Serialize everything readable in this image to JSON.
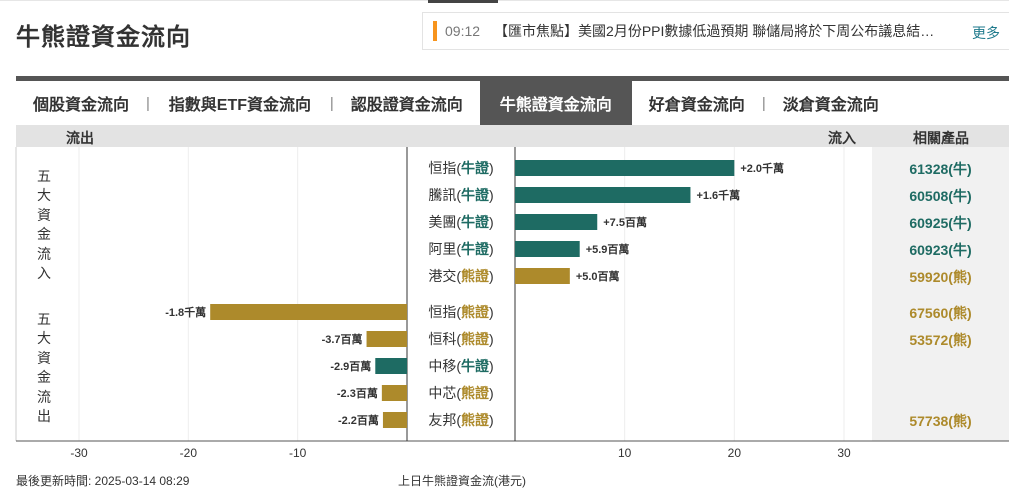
{
  "page_title": "牛熊證資金流向",
  "ticker": {
    "time": "09:12",
    "text": "【匯市焦點】美國2月份PPI數據低過預期 聯儲局將於下周公布議息結…",
    "more": "更多"
  },
  "tabs": [
    {
      "label": "個股資金流向",
      "active": false
    },
    {
      "label": "指數與ETF資金流向",
      "active": false
    },
    {
      "label": "認股證資金流向",
      "active": false
    },
    {
      "label": "牛熊證資金流向",
      "active": true
    },
    {
      "label": "好倉資金流向",
      "active": false
    },
    {
      "label": "淡倉資金流向",
      "active": false
    }
  ],
  "tab_separator": "|",
  "header": {
    "outflow": "流出",
    "inflow": "流入",
    "products": "相關產品"
  },
  "side_labels": {
    "inflow": "五大資金流入",
    "outflow": "五大資金流出"
  },
  "colors": {
    "bull": "#1e6b63",
    "bear": "#ad8a2b",
    "bull_text": "#1e6b63",
    "bear_text": "#ad8a2b"
  },
  "chart_data": {
    "type": "bar",
    "orientation": "horizontal",
    "x_ticks": [
      -30,
      -20,
      -10,
      10,
      20,
      30
    ],
    "x_tick_labels": [
      "-30",
      "-20",
      "-10",
      "10",
      "20",
      "30"
    ],
    "xlim": [
      -30,
      30
    ],
    "xlabel": "上日牛熊證資金流(港元)",
    "inflow": [
      {
        "name": "恒指",
        "type": "牛證",
        "kind": "bull",
        "value": 20,
        "label": "+2.0千萬",
        "product": "61328(牛)"
      },
      {
        "name": "騰訊",
        "type": "牛證",
        "kind": "bull",
        "value": 16,
        "label": "+1.6千萬",
        "product": "60508(牛)"
      },
      {
        "name": "美團",
        "type": "牛證",
        "kind": "bull",
        "value": 7.5,
        "label": "+7.5百萬",
        "product": "60925(牛)"
      },
      {
        "name": "阿里",
        "type": "牛證",
        "kind": "bull",
        "value": 5.9,
        "label": "+5.9百萬",
        "product": "60923(牛)"
      },
      {
        "name": "港交",
        "type": "熊證",
        "kind": "bear",
        "value": 5.0,
        "label": "+5.0百萬",
        "product": "59920(熊)"
      }
    ],
    "outflow": [
      {
        "name": "恒指",
        "type": "熊證",
        "kind": "bear",
        "value": -18,
        "label": "-1.8千萬",
        "product": "67560(熊)"
      },
      {
        "name": "恒科",
        "type": "熊證",
        "kind": "bear",
        "value": -3.7,
        "label": "-3.7百萬",
        "product": "53572(熊)"
      },
      {
        "name": "中移",
        "type": "牛證",
        "kind": "bull",
        "value": -2.9,
        "label": "-2.9百萬",
        "product": ""
      },
      {
        "name": "中芯",
        "type": "熊證",
        "kind": "bear",
        "value": -2.3,
        "label": "-2.3百萬",
        "product": ""
      },
      {
        "name": "友邦",
        "type": "熊證",
        "kind": "bear",
        "value": -2.2,
        "label": "-2.2百萬",
        "product": "57738(熊)"
      }
    ]
  },
  "footer": {
    "updated": "最後更新時間: 2025-03-14 08:29"
  }
}
